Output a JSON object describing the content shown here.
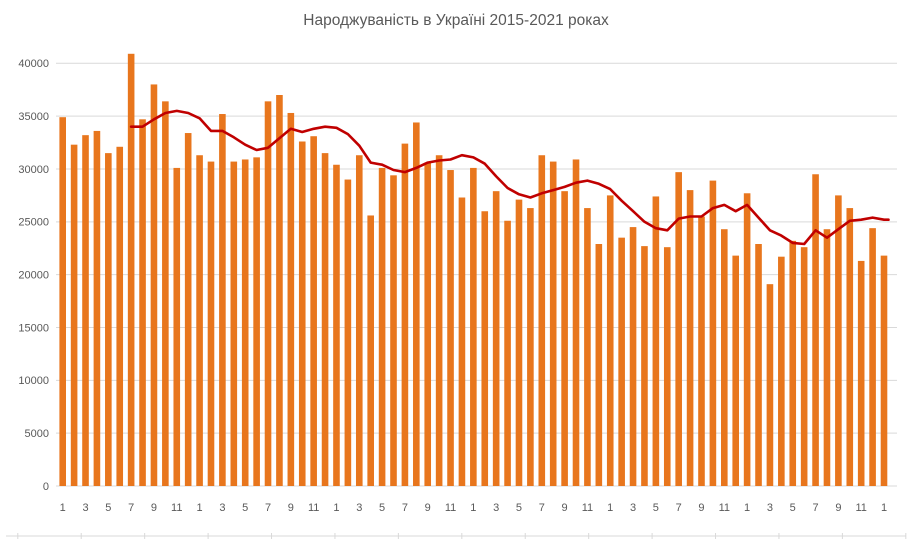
{
  "title": "Народжуваність в Україні 2015-2021 роках",
  "colors": {
    "bar": "#E8761D",
    "line": "#C00000",
    "grid": "#D9D9D9",
    "axis_text": "#595959",
    "title_text": "#595959",
    "background": "#FFFFFF"
  },
  "chart_data": {
    "type": "bar",
    "title": "Народжуваність в Україні 2015-2021 роках",
    "grid": true,
    "legend": false,
    "ylim": [
      0,
      40000
    ],
    "y_tick_step": 5000,
    "y_tick_labels": [
      "0",
      "5000",
      "10000",
      "15000",
      "20000",
      "25000",
      "30000",
      "35000",
      "40000"
    ],
    "x_months": [
      1,
      2,
      3,
      4,
      5,
      6,
      7,
      8,
      9,
      10,
      11,
      12,
      1,
      2,
      3,
      4,
      5,
      6,
      7,
      8,
      9,
      10,
      11,
      12,
      1,
      2,
      3,
      4,
      5,
      6,
      7,
      8,
      9,
      10,
      11,
      12,
      1,
      2,
      3,
      4,
      5,
      6,
      7,
      8,
      9,
      10,
      11,
      12,
      1,
      2,
      3,
      4,
      5,
      6,
      7,
      8,
      9,
      10,
      11,
      12,
      1,
      2,
      3,
      4,
      5,
      6,
      7,
      8,
      9,
      10,
      11,
      12,
      1
    ],
    "x_tick_labels": [
      "1",
      "",
      "3",
      "",
      "5",
      "",
      "7",
      "",
      "9",
      "",
      "11",
      "",
      "1",
      "",
      "3",
      "",
      "5",
      "",
      "7",
      "",
      "9",
      "",
      "11",
      "",
      "1",
      "",
      "3",
      "",
      "5",
      "",
      "7",
      "",
      "9",
      "",
      "11",
      "",
      "1",
      "",
      "3",
      "",
      "5",
      "",
      "7",
      "",
      "9",
      "",
      "11",
      "",
      "1",
      "",
      "3",
      "",
      "5",
      "",
      "7",
      "",
      "9",
      "",
      "11",
      "",
      "1",
      "",
      "3",
      "",
      "5",
      "",
      "7",
      "",
      "9",
      "",
      "11",
      "",
      "1"
    ],
    "series": [
      {
        "role": "monthly-births-bars",
        "type": "bar",
        "values": [
          34900,
          32300,
          33200,
          33600,
          31500,
          32100,
          40900,
          34700,
          38000,
          36400,
          30100,
          33400,
          31300,
          30700,
          35200,
          30700,
          30900,
          31100,
          36400,
          37000,
          35300,
          32600,
          33100,
          31500,
          30400,
          29000,
          31300,
          25600,
          30100,
          29400,
          32400,
          34400,
          30600,
          31300,
          29900,
          27300,
          30100,
          26000,
          27900,
          25100,
          27100,
          26300,
          31300,
          30700,
          27900,
          30900,
          26300,
          22900,
          27500,
          23500,
          24500,
          22700,
          27400,
          22600,
          29700,
          28000,
          25500,
          28900,
          24300,
          21800,
          27700,
          22900,
          19100,
          21700,
          23200,
          22600,
          29500,
          24300,
          27500,
          26300,
          21300,
          24400,
          21800
        ]
      },
      {
        "role": "trend-line",
        "type": "line",
        "values": [
          null,
          null,
          null,
          null,
          null,
          null,
          34000,
          34000,
          34700,
          35300,
          35500,
          35300,
          34800,
          33600,
          33600,
          33000,
          32300,
          31800,
          32000,
          32900,
          33800,
          33500,
          33800,
          34000,
          33900,
          33300,
          32200,
          30600,
          30400,
          29900,
          29700,
          30100,
          30600,
          30800,
          30900,
          31300,
          31100,
          30500,
          29300,
          28200,
          27600,
          27300,
          27700,
          28000,
          28300,
          28700,
          28900,
          28600,
          28100,
          27000,
          26000,
          25000,
          24400,
          24200,
          25300,
          25500,
          25500,
          26300,
          26600,
          26000,
          26600,
          25400,
          24200,
          23700,
          23000,
          22900,
          24200,
          23500,
          24300,
          25100,
          25200,
          25400,
          25200
        ]
      }
    ]
  }
}
